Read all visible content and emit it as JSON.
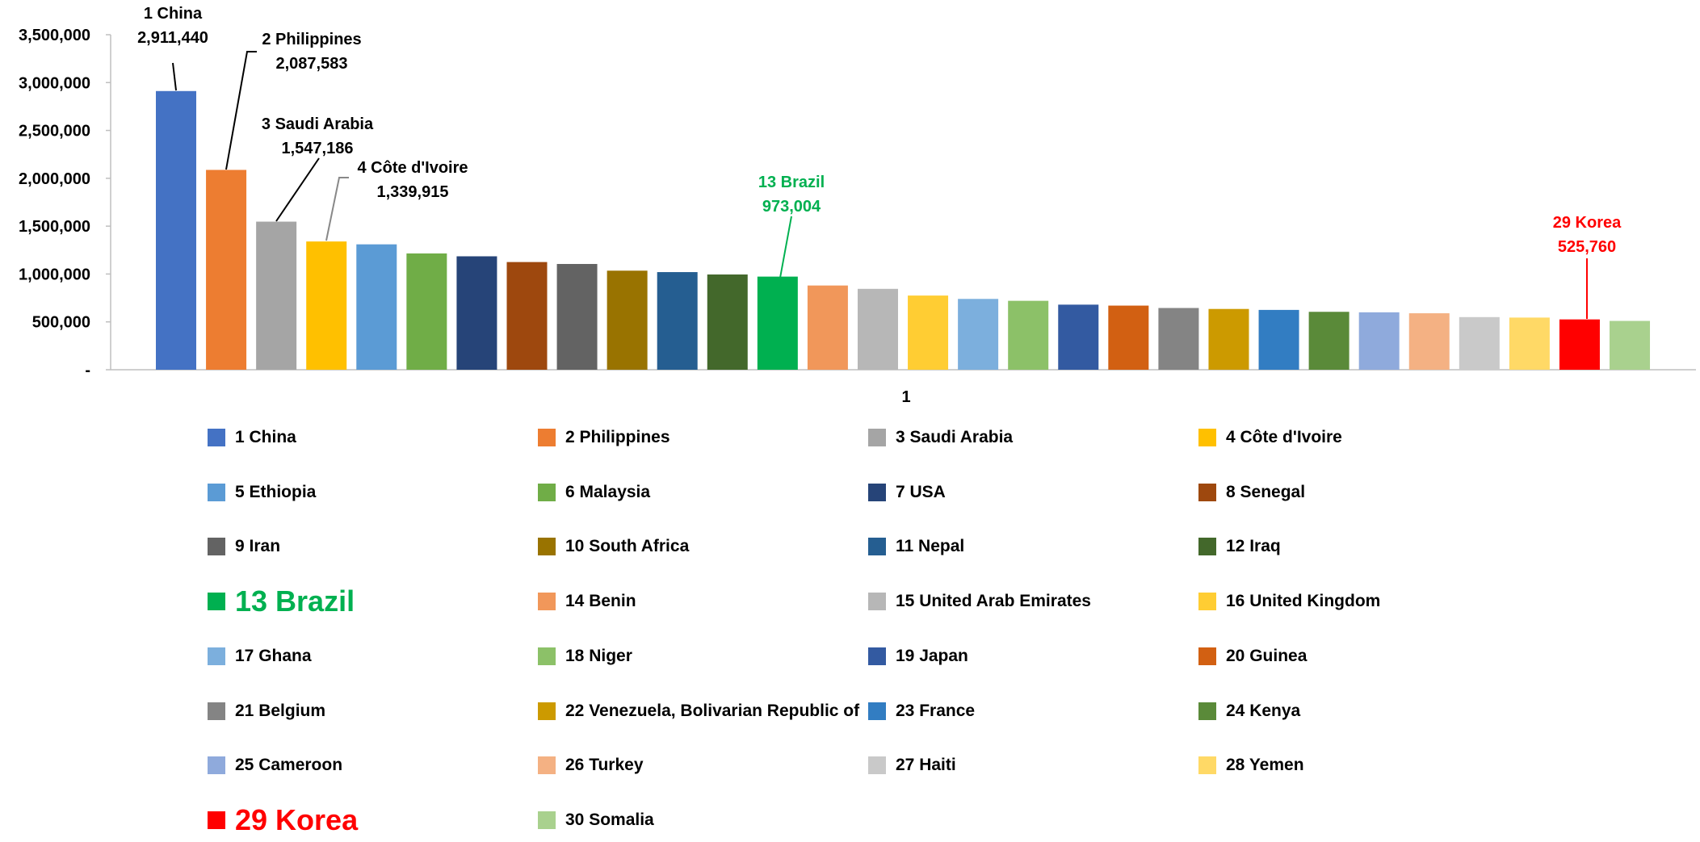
{
  "chart_data": {
    "type": "bar",
    "title": "",
    "xlabel": "",
    "ylabel": "",
    "ylim": [
      0,
      3500000
    ],
    "yticks": [
      {
        "value": 0,
        "label": "-"
      },
      {
        "value": 500000,
        "label": "500,000"
      },
      {
        "value": 1000000,
        "label": "1,000,000"
      },
      {
        "value": 1500000,
        "label": "1,500,000"
      },
      {
        "value": 2000000,
        "label": "2,000,000"
      },
      {
        "value": 2500000,
        "label": "2,500,000"
      },
      {
        "value": 3000000,
        "label": "3,000,000"
      },
      {
        "value": 3500000,
        "label": "3,500,000"
      }
    ],
    "x_category_label": "1",
    "grid": false,
    "legend_position": "bottom",
    "series": [
      {
        "name": "1 China",
        "value": 2911440,
        "color": "#4472C4"
      },
      {
        "name": "2 Philippines",
        "value": 2087583,
        "color": "#ED7D31"
      },
      {
        "name": "3 Saudi Arabia",
        "value": 1547186,
        "color": "#A5A5A5"
      },
      {
        "name": "4 Côte d'Ivoire",
        "value": 1339915,
        "color": "#FFC000"
      },
      {
        "name": "5 Ethiopia",
        "value": 1310000,
        "color": "#5B9BD5"
      },
      {
        "name": "6 Malaysia",
        "value": 1215000,
        "color": "#70AD47"
      },
      {
        "name": "7 USA",
        "value": 1185000,
        "color": "#264478"
      },
      {
        "name": "8 Senegal",
        "value": 1125000,
        "color": "#9E480E"
      },
      {
        "name": "9 Iran",
        "value": 1105000,
        "color": "#636363"
      },
      {
        "name": "10 South Africa",
        "value": 1035000,
        "color": "#997300"
      },
      {
        "name": "11 Nepal",
        "value": 1020000,
        "color": "#255E91"
      },
      {
        "name": "12 Iraq",
        "value": 995000,
        "color": "#43682B"
      },
      {
        "name": "13 Brazil",
        "value": 973004,
        "color": "#00B050"
      },
      {
        "name": "14 Benin",
        "value": 880000,
        "color": "#F1975A"
      },
      {
        "name": "15 United Arab Emirates",
        "value": 845000,
        "color": "#B7B7B7"
      },
      {
        "name": "16 United Kingdom",
        "value": 775000,
        "color": "#FFCD33"
      },
      {
        "name": "17 Ghana",
        "value": 740000,
        "color": "#7CAFDD"
      },
      {
        "name": "18 Niger",
        "value": 720000,
        "color": "#8CC168"
      },
      {
        "name": "19 Japan",
        "value": 680000,
        "color": "#335AA1"
      },
      {
        "name": "20 Guinea",
        "value": 670000,
        "color": "#D26012"
      },
      {
        "name": "21 Belgium",
        "value": 645000,
        "color": "#848484"
      },
      {
        "name": "22 Venezuela, Bolivarian Republic of",
        "value": 635000,
        "color": "#CC9A00"
      },
      {
        "name": "23 France",
        "value": 625000,
        "color": "#327DC2"
      },
      {
        "name": "24 Kenya",
        "value": 605000,
        "color": "#5A8A39"
      },
      {
        "name": "25 Cameroon",
        "value": 600000,
        "color": "#8FAADC"
      },
      {
        "name": "26 Turkey",
        "value": 590000,
        "color": "#F4B183"
      },
      {
        "name": "27 Haiti",
        "value": 550000,
        "color": "#C9C9C9"
      },
      {
        "name": "28 Yemen",
        "value": 545000,
        "color": "#FFD966"
      },
      {
        "name": "29 Korea",
        "value": 525760,
        "color": "#FF0000"
      },
      {
        "name": "30 Somalia",
        "value": 510000,
        "color": "#A9D18E"
      }
    ],
    "annotations": [
      {
        "series_index": 0,
        "name": "1 China",
        "value_text": "2,911,440",
        "color": "#000000"
      },
      {
        "series_index": 1,
        "name": "2 Philippines",
        "value_text": "2,087,583",
        "color": "#000000"
      },
      {
        "series_index": 2,
        "name": "3 Saudi Arabia",
        "value_text": "1,547,186",
        "color": "#000000"
      },
      {
        "series_index": 3,
        "name": "4 Côte d'Ivoire",
        "value_text": "1,339,915",
        "color": "#000000"
      },
      {
        "series_index": 12,
        "name": "13 Brazil",
        "value_text": "973,004",
        "color": "#00B050"
      },
      {
        "series_index": 28,
        "name": "29 Korea",
        "value_text": "525,760",
        "color": "#FF0000"
      }
    ],
    "legend_highlights": [
      12,
      28
    ]
  }
}
